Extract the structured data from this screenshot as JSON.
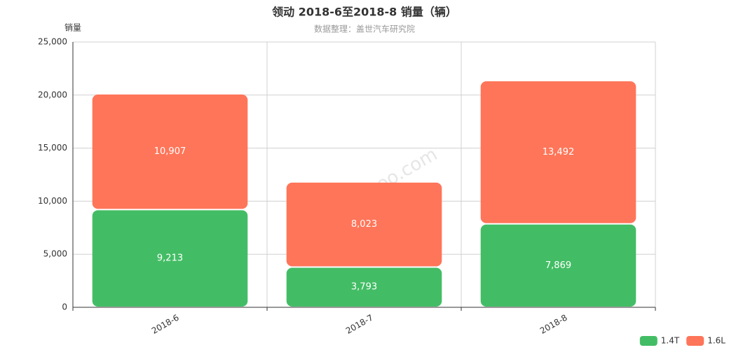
{
  "chart_data": {
    "type": "stacked-bar",
    "title": "领动 2018-6至2018-8 销量（辆）",
    "subtitle": "数据整理：盖世汽车研究院",
    "y_label": "销量",
    "watermark": "auto.gasgoo.com",
    "categories": [
      "2018-6",
      "2018-7",
      "2018-8"
    ],
    "series": [
      {
        "name": "1.4T",
        "color": "#43bd65",
        "values": [
          9213,
          3793,
          7869
        ],
        "value_labels": [
          "9,213",
          "3,793",
          "7,869"
        ]
      },
      {
        "name": "1.6L",
        "color": "#ff7559",
        "values": [
          10907,
          8023,
          13492
        ],
        "value_labels": [
          "10,907",
          "8,023",
          "13,492"
        ]
      }
    ],
    "ylim": [
      0,
      25000
    ],
    "yticks": [
      0,
      {
        "value": 5000,
        "label": "5,000"
      },
      {
        "value": 10000,
        "label": "10,000"
      },
      {
        "value": 15000,
        "label": "15,000"
      },
      {
        "value": 20000,
        "label": "20,000"
      },
      {
        "value": 25000,
        "label": "25,000"
      }
    ],
    "grid": true,
    "legend": "bottom-right"
  }
}
